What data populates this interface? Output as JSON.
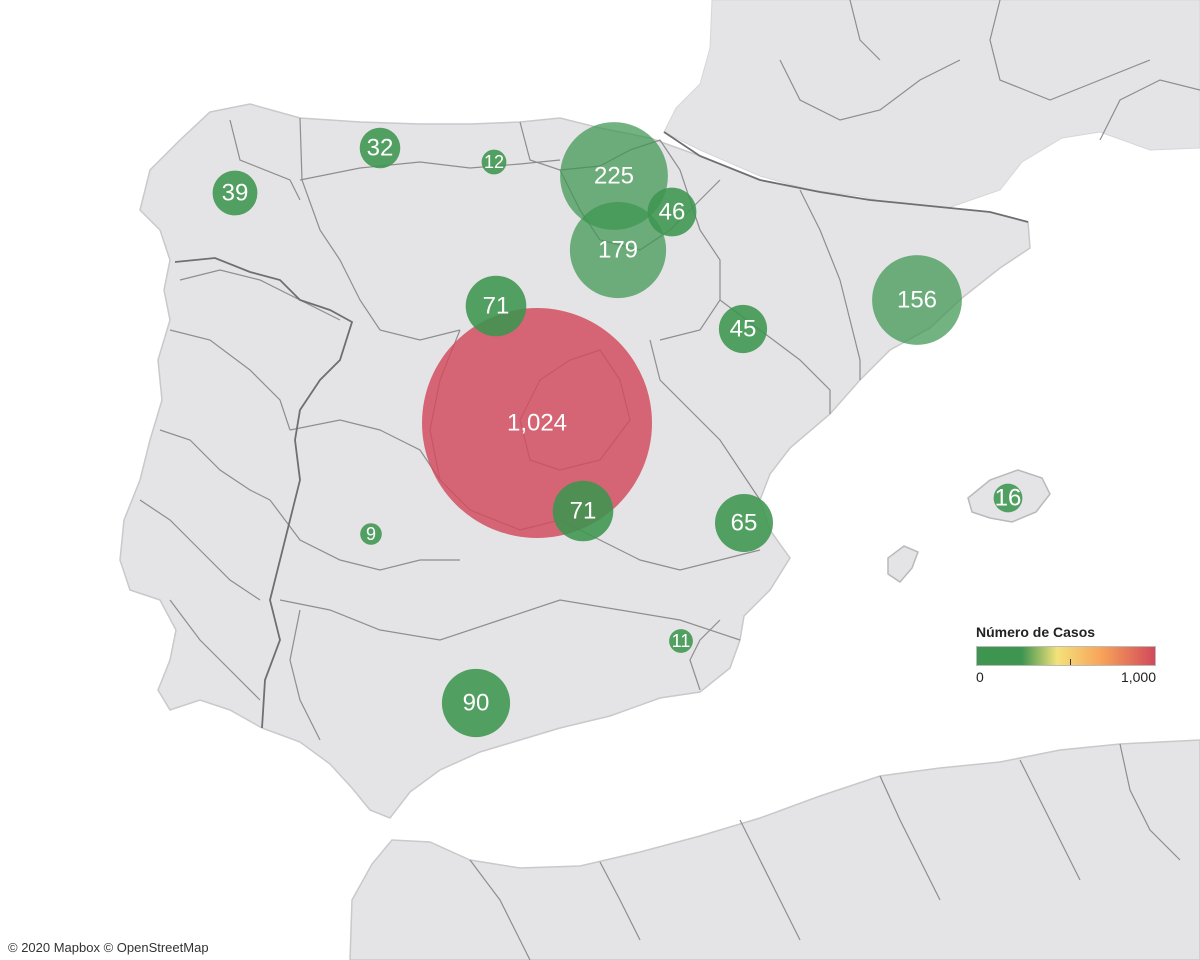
{
  "map": {
    "region": "Iberian Peninsula",
    "land_color": "#e4e4e6",
    "border_color": "#8e8e90",
    "water_color": "#ffffff"
  },
  "legend": {
    "title": "Número de Casos",
    "min_label": "0",
    "max_label": "1,000",
    "color_low": "#3d9550",
    "color_mid": "#f3e27a",
    "color_high": "#d2495a"
  },
  "bubbles": [
    {
      "label": "1,024",
      "value": 1024
    },
    {
      "label": "225",
      "value": 225
    },
    {
      "label": "179",
      "value": 179
    },
    {
      "label": "156",
      "value": 156
    },
    {
      "label": "90",
      "value": 90
    },
    {
      "label": "71",
      "value": 71
    },
    {
      "label": "71",
      "value": 71
    },
    {
      "label": "65",
      "value": 65
    },
    {
      "label": "46",
      "value": 46
    },
    {
      "label": "45",
      "value": 45
    },
    {
      "label": "39",
      "value": 39
    },
    {
      "label": "32",
      "value": 32
    },
    {
      "label": "16",
      "value": 16
    },
    {
      "label": "12",
      "value": 12
    },
    {
      "label": "11",
      "value": 11
    },
    {
      "label": "9",
      "value": 9
    }
  ],
  "attribution": "© 2020 Mapbox © OpenStreetMap"
}
